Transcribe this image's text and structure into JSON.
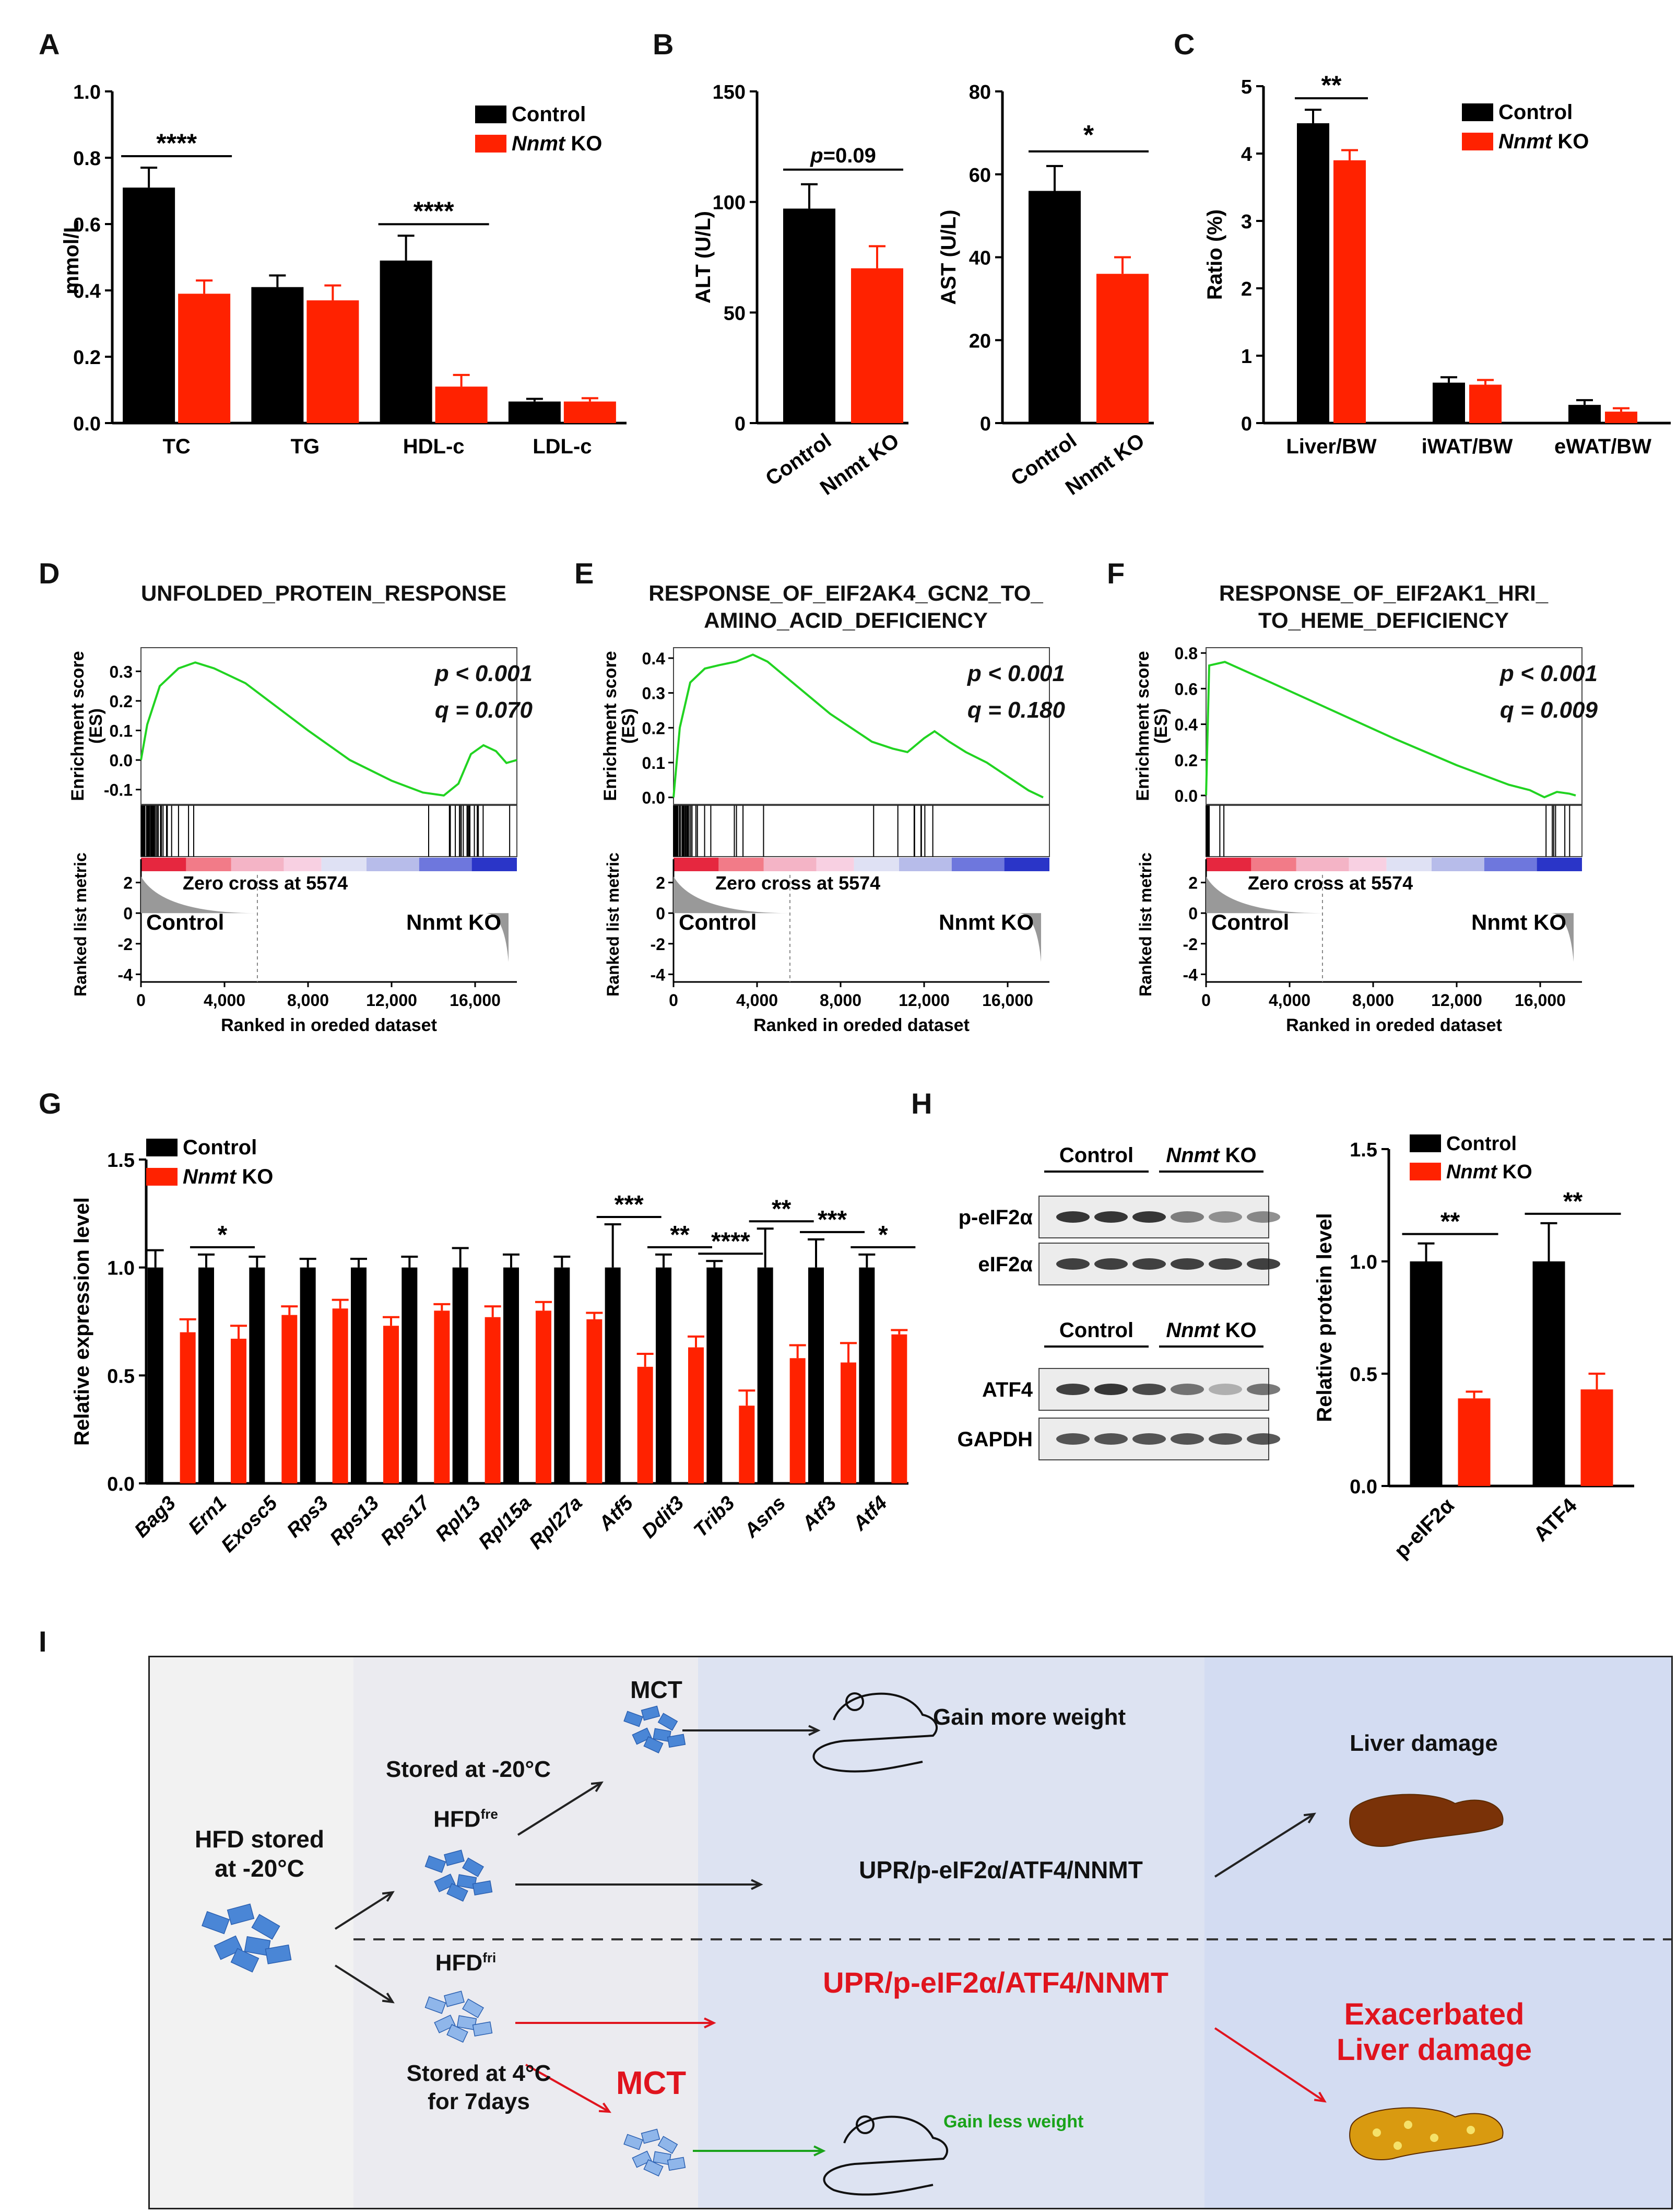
{
  "panels": {
    "A": {
      "label": "A",
      "chart_data": {
        "type": "bar",
        "ylabel": "mmol/L",
        "ylim": [
          0,
          1.0
        ],
        "yticks": [
          "0.0",
          "0.2",
          "0.4",
          "0.6",
          "0.8",
          "1.0"
        ],
        "categories": [
          "TC",
          "TG",
          "HDL-c",
          "LDL-c"
        ],
        "series": [
          {
            "name": "Control",
            "values": [
              0.71,
              0.41,
              0.49,
              0.065
            ],
            "err": [
              0.06,
              0.035,
              0.075,
              0.008
            ],
            "color": "#000000"
          },
          {
            "name": "Nnmt KO",
            "values": [
              0.39,
              0.37,
              0.11,
              0.065
            ],
            "err": [
              0.04,
              0.045,
              0.035,
              0.01
            ],
            "color": "#ff2200"
          }
        ],
        "significance": [
          "****",
          "",
          "****",
          ""
        ],
        "legend": "top-right"
      }
    },
    "B1": {
      "label": "B",
      "chart_data": {
        "type": "bar",
        "ylabel": "ALT (U/L)",
        "ylim": [
          0,
          150
        ],
        "yticks": [
          "0",
          "50",
          "100",
          "150"
        ],
        "categories": [
          "Control",
          "Nnmt KO"
        ],
        "values": [
          97,
          70
        ],
        "err": [
          11,
          10
        ],
        "colors": [
          "#000000",
          "#ff2200"
        ],
        "annotation_italic": "p",
        "annotation_rest": "=0.09"
      }
    },
    "B2": {
      "chart_data": {
        "type": "bar",
        "ylabel": "AST (U/L)",
        "ylim": [
          0,
          80
        ],
        "yticks": [
          "0",
          "20",
          "40",
          "60",
          "80"
        ],
        "categories": [
          "Control",
          "Nnmt KO"
        ],
        "values": [
          56,
          36
        ],
        "err": [
          6,
          4
        ],
        "colors": [
          "#000000",
          "#ff2200"
        ],
        "annotation": "*"
      }
    },
    "C": {
      "label": "C",
      "chart_data": {
        "type": "bar",
        "ylabel": "Ratio (%)",
        "ylim": [
          0,
          5
        ],
        "yticks": [
          "0",
          "1",
          "2",
          "3",
          "4",
          "5"
        ],
        "categories": [
          "Liver/BW",
          "iWAT/BW",
          "eWAT/BW"
        ],
        "series": [
          {
            "name": "Control",
            "values": [
              4.45,
              0.6,
              0.27
            ],
            "err": [
              0.2,
              0.08,
              0.07
            ],
            "color": "#000000"
          },
          {
            "name": "Nnmt KO",
            "values": [
              3.9,
              0.57,
              0.17
            ],
            "err": [
              0.15,
              0.07,
              0.05
            ],
            "color": "#ff2200"
          }
        ],
        "significance": [
          "**",
          "",
          ""
        ],
        "legend": "top-right"
      }
    },
    "D": {
      "label": "D",
      "title": "UNFOLDED_PROTEIN_RESPONSE",
      "p": "p < 0.001",
      "q": "q = 0.070",
      "es_yticks": [
        "-0.1",
        "0.0",
        "0.1",
        "0.2",
        "0.3"
      ],
      "ylim": [
        -0.15,
        0.38
      ],
      "es_curve": [
        [
          0,
          0
        ],
        [
          300,
          0.12
        ],
        [
          900,
          0.25
        ],
        [
          1800,
          0.31
        ],
        [
          2600,
          0.33
        ],
        [
          3500,
          0.31
        ],
        [
          5000,
          0.26
        ],
        [
          6500,
          0.18
        ],
        [
          8000,
          0.1
        ],
        [
          10000,
          0.0
        ],
        [
          12000,
          -0.07
        ],
        [
          13500,
          -0.11
        ],
        [
          14500,
          -0.12
        ],
        [
          15200,
          -0.08
        ],
        [
          15800,
          0.02
        ],
        [
          16400,
          0.05
        ],
        [
          17000,
          0.03
        ],
        [
          17500,
          -0.01
        ],
        [
          18000,
          0.0
        ]
      ]
    },
    "E": {
      "label": "E",
      "title": "RESPONSE_OF_EIF2AK4_GCN2_TO_ AMINO_ACID_DEFICIENCY",
      "p": "p < 0.001",
      "q": "q = 0.180",
      "es_yticks": [
        "0.0",
        "0.1",
        "0.2",
        "0.3",
        "0.4"
      ],
      "ylim": [
        -0.02,
        0.43
      ],
      "es_curve": [
        [
          0,
          0
        ],
        [
          300,
          0.2
        ],
        [
          800,
          0.33
        ],
        [
          1500,
          0.37
        ],
        [
          2200,
          0.38
        ],
        [
          3000,
          0.39
        ],
        [
          3800,
          0.41
        ],
        [
          4500,
          0.39
        ],
        [
          5500,
          0.34
        ],
        [
          6500,
          0.29
        ],
        [
          7500,
          0.24
        ],
        [
          8500,
          0.2
        ],
        [
          9500,
          0.16
        ],
        [
          10500,
          0.14
        ],
        [
          11200,
          0.13
        ],
        [
          12000,
          0.17
        ],
        [
          12500,
          0.19
        ],
        [
          13200,
          0.16
        ],
        [
          14000,
          0.13
        ],
        [
          15000,
          0.1
        ],
        [
          16000,
          0.06
        ],
        [
          17000,
          0.02
        ],
        [
          17700,
          0.0
        ]
      ]
    },
    "F": {
      "label": "F",
      "title": "RESPONSE_OF_EIF2AK1_HRI_ TO_HEME_DEFICIENCY",
      "p": "p < 0.001",
      "q": "q = 0.009",
      "es_yticks": [
        "0.0",
        "0.2",
        "0.4",
        "0.6",
        "0.8"
      ],
      "ylim": [
        -0.05,
        0.83
      ],
      "es_curve": [
        [
          0,
          0
        ],
        [
          150,
          0.73
        ],
        [
          900,
          0.75
        ],
        [
          3000,
          0.64
        ],
        [
          6000,
          0.48
        ],
        [
          9000,
          0.32
        ],
        [
          12000,
          0.17
        ],
        [
          14500,
          0.06
        ],
        [
          15500,
          0.03
        ],
        [
          16200,
          -0.01
        ],
        [
          16800,
          0.02
        ],
        [
          17400,
          0.01
        ],
        [
          17700,
          0.0
        ]
      ]
    },
    "gsea_common": {
      "ranked_ylabel": "Ranked list metric",
      "es_ylabel_line1": "Enrichment score",
      "es_ylabel_line2": "(ES)",
      "rank_yticks": [
        "2",
        "0",
        "-2",
        "-4"
      ],
      "zero_cross": "Zero cross at 5574",
      "left_group": "Control",
      "right_group": "Nnmt KO",
      "xticks": [
        "0",
        "4,000",
        "8,000",
        "12,000",
        "16,000"
      ],
      "xlabel": "Ranked in oreded dataset",
      "xlim": [
        0,
        18000
      ]
    },
    "G": {
      "label": "G",
      "chart_data": {
        "type": "bar",
        "ylabel": "Relative expression level",
        "ylim": [
          0,
          1.5
        ],
        "yticks": [
          "0.0",
          "0.5",
          "1.0",
          "1.5"
        ],
        "categories": [
          "Bag3",
          "Ern1",
          "Exosc5",
          "Rps3",
          "Rps13",
          "Rps17",
          "Rpl13",
          "Rpl15a",
          "Rpl27a",
          "Atf5",
          "Ddit3",
          "Trib3",
          "Asns",
          "Atf3",
          "Atf4"
        ],
        "series": [
          {
            "name": "Control",
            "values": [
              1.0,
              1.0,
              1.0,
              1.0,
              1.0,
              1.0,
              1.0,
              1.0,
              1.0,
              1.0,
              1.0,
              1.0,
              1.0,
              1.0,
              1.0
            ],
            "err": [
              0.08,
              0.06,
              0.05,
              0.04,
              0.04,
              0.05,
              0.09,
              0.06,
              0.05,
              0.2,
              0.06,
              0.03,
              0.18,
              0.13,
              0.06
            ],
            "color": "#000000"
          },
          {
            "name": "Nnmt KO",
            "values": [
              0.7,
              0.67,
              0.78,
              0.81,
              0.73,
              0.8,
              0.77,
              0.8,
              0.76,
              0.54,
              0.63,
              0.36,
              0.58,
              0.56,
              0.69
            ],
            "err": [
              0.06,
              0.06,
              0.04,
              0.04,
              0.04,
              0.03,
              0.05,
              0.04,
              0.03,
              0.06,
              0.05,
              0.07,
              0.06,
              0.09,
              0.02
            ],
            "color": "#ff2200"
          }
        ],
        "significance": [
          "",
          "*",
          "",
          "",
          "",
          "",
          "",
          "",
          "",
          "***",
          "**",
          "****",
          "**",
          "***",
          "*"
        ],
        "legend": "top-left"
      }
    },
    "H": {
      "label": "H",
      "blot_control": "Control",
      "blot_ko_italic": "Nnmt",
      "blot_ko_rest": " KO",
      "bands": [
        "p-eIF2α",
        "eIF2α",
        "ATF4",
        "GAPDH"
      ],
      "chart_data": {
        "type": "bar",
        "ylabel": "Relative protein level",
        "ylim": [
          0,
          1.5
        ],
        "yticks": [
          "0.0",
          "0.5",
          "1.0",
          "1.5"
        ],
        "categories": [
          "p-eIF2α",
          "ATF4"
        ],
        "series": [
          {
            "name": "Control",
            "values": [
              1.0,
              1.0
            ],
            "err": [
              0.08,
              0.17
            ],
            "color": "#000000"
          },
          {
            "name": "Nnmt KO",
            "values": [
              0.39,
              0.43
            ],
            "err": [
              0.03,
              0.07
            ],
            "color": "#ff2200"
          }
        ],
        "significance": [
          "**",
          "**"
        ],
        "legend": "top-right"
      }
    },
    "I": {
      "label": "I",
      "hfd_stored": "HFD stored",
      "at_20": "at -20°C",
      "stored_20": "Stored at -20°C",
      "hfd_fre_base": "HFD",
      "hfd_fre_sup": "fre",
      "hfd_fri_base": "HFD",
      "hfd_fri_sup": "fri",
      "stored_4_line1": "Stored at 4°C",
      "stored_4_line2": "for 7days",
      "mct_top": "MCT",
      "mct_bottom": "MCT",
      "gain_more": "Gain more weight",
      "gain_less": "Gain less weight",
      "upr_top": "UPR/p-eIF2α/ATF4/NNMT",
      "upr_bottom": "UPR/p-eIF2α/ATF4/NNMT",
      "liver_damage": "Liver damage",
      "exacerbated_line1": "Exacerbated",
      "exacerbated_line2": "Liver damage"
    }
  },
  "legend": {
    "control": "Control",
    "ko_italic": "Nnmt",
    "ko_rest": " KO"
  }
}
